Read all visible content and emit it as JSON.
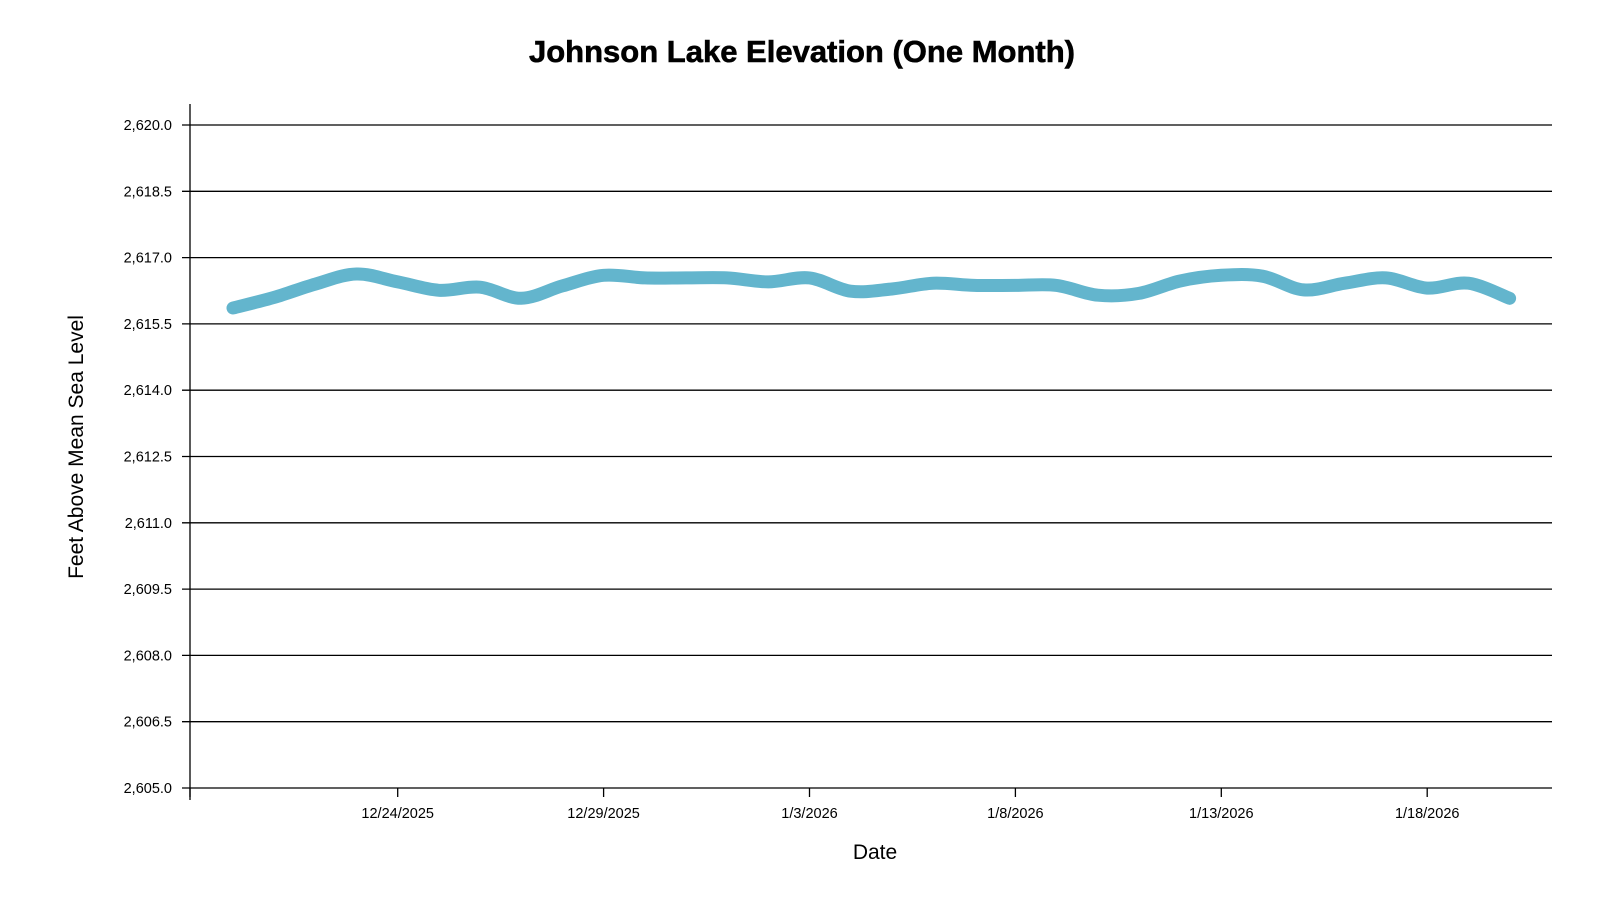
{
  "chart_data": {
    "type": "line",
    "title": "Johnson Lake Elevation (One Month)",
    "xlabel": "Date",
    "ylabel": "Feet Above Mean Sea Level",
    "ylim": [
      2605.0,
      2620.0
    ],
    "y_ticks": [
      "2,605.0",
      "2,606.5",
      "2,608.0",
      "2,609.5",
      "2,611.0",
      "2,612.5",
      "2,614.0",
      "2,615.5",
      "2,617.0",
      "2,618.5",
      "2,620.0"
    ],
    "y_tick_values": [
      2605.0,
      2606.5,
      2608.0,
      2609.5,
      2611.0,
      2612.5,
      2614.0,
      2615.5,
      2617.0,
      2618.5,
      2620.0
    ],
    "x_ticks": [
      "12/24/2025",
      "12/29/2025",
      "1/3/2026",
      "1/8/2026",
      "1/13/2026",
      "1/18/2026"
    ],
    "x_tick_day_index": [
      4,
      9,
      14,
      19,
      24,
      29
    ],
    "x_range_days": [
      -1,
      32.4
    ],
    "grid": true,
    "series": [
      {
        "name": "Elevation",
        "color": "#63b5cd",
        "x": [
          "12/20/2025",
          "12/21/2025",
          "12/22/2025",
          "12/23/2025",
          "12/24/2025",
          "12/25/2025",
          "12/26/2025",
          "12/27/2025",
          "12/28/2025",
          "12/29/2025",
          "12/30/2025",
          "12/31/2025",
          "1/1/2026",
          "1/2/2026",
          "1/3/2026",
          "1/4/2026",
          "1/5/2026",
          "1/6/2026",
          "1/7/2026",
          "1/8/2026",
          "1/9/2026",
          "1/10/2026",
          "1/11/2026",
          "1/12/2026",
          "1/13/2026",
          "1/14/2026",
          "1/15/2026",
          "1/16/2026",
          "1/17/2026",
          "1/18/2026",
          "1/19/2026",
          "1/20/2026"
        ],
        "values": [
          2615.86,
          2616.1,
          2616.4,
          2616.63,
          2616.45,
          2616.26,
          2616.33,
          2616.08,
          2616.36,
          2616.6,
          2616.54,
          2616.54,
          2616.54,
          2616.45,
          2616.54,
          2616.24,
          2616.29,
          2616.42,
          2616.37,
          2616.37,
          2616.37,
          2616.15,
          2616.19,
          2616.47,
          2616.6,
          2616.58,
          2616.27,
          2616.42,
          2616.54,
          2616.31,
          2616.42,
          2616.08
        ]
      }
    ]
  }
}
